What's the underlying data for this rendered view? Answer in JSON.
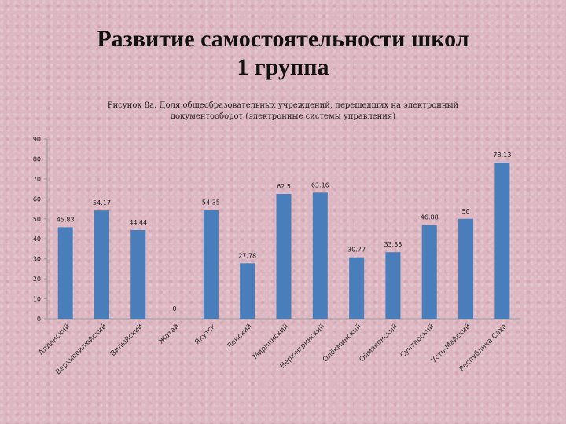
{
  "slide": {
    "title_line1": "Развитие самостоятельности школ",
    "title_line2": "1 группа"
  },
  "chart_data": {
    "type": "bar",
    "title": "Рисунок 8а. Доля общеобразовательных учреждений, перешедших на электронный документооборот (электронные системы управления)",
    "categories": [
      "Алданский",
      "Верхневилюйский",
      "Вилюйский",
      "Жатай",
      "Якутск",
      "Ленский",
      "Мирнинский",
      "Нерюнгринский",
      "Олёкминский",
      "Оймяконский",
      "Сунтарский",
      "Усть-Майский",
      "Республика Саха"
    ],
    "values": [
      45.83,
      54.17,
      44.44,
      0,
      54.35,
      27.78,
      62.5,
      63.16,
      30.77,
      33.33,
      46.88,
      50,
      78.13
    ],
    "data_labels": [
      "45.83",
      "54.17",
      "44.44",
      "0",
      "54.35",
      "27.78",
      "62.5",
      "63.16",
      "30.77",
      "33.33",
      "46.88",
      "50",
      "78.13"
    ],
    "ylim": [
      0,
      90
    ],
    "yticks": [
      0,
      10,
      20,
      30,
      40,
      50,
      60,
      70,
      80,
      90
    ],
    "bar_color": "#4a7ebb",
    "grid": false,
    "legend": "none"
  }
}
